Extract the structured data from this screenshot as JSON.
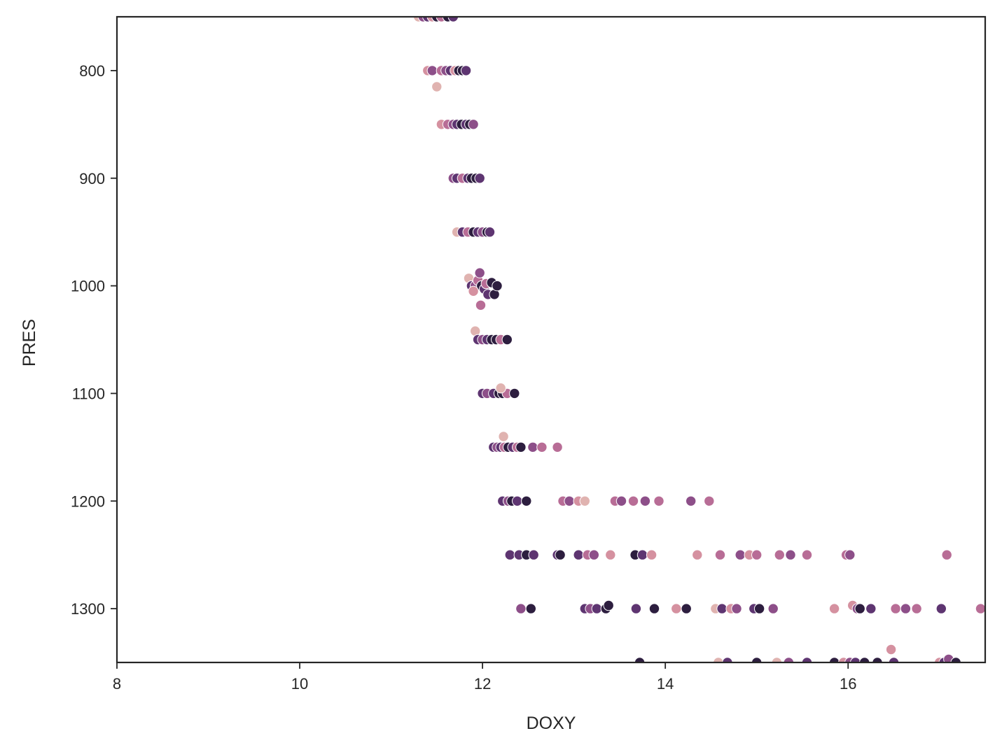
{
  "chart_data": {
    "type": "scatter",
    "title": "",
    "xlabel": "DOXY",
    "ylabel": "PRES",
    "xlim": [
      8,
      17.5
    ],
    "ylim": [
      1350,
      750
    ],
    "y_inverted": true,
    "grid": false,
    "legend": "none",
    "x_ticks": [
      8,
      10,
      12,
      14,
      16
    ],
    "y_ticks": [
      800,
      900,
      1000,
      1100,
      1200,
      1300
    ],
    "palette": [
      "#e0b3b0",
      "#d591a0",
      "#b86d96",
      "#8d4f89",
      "#5e3571",
      "#2d1e3f"
    ],
    "points": [
      [
        11.3,
        750,
        0
      ],
      [
        11.35,
        750,
        3
      ],
      [
        11.4,
        750,
        4
      ],
      [
        11.45,
        750,
        1
      ],
      [
        11.5,
        750,
        5
      ],
      [
        11.55,
        750,
        2
      ],
      [
        11.62,
        750,
        5
      ],
      [
        11.68,
        750,
        4
      ],
      [
        11.4,
        800,
        1
      ],
      [
        11.45,
        800,
        3
      ],
      [
        11.55,
        800,
        2
      ],
      [
        11.6,
        800,
        3
      ],
      [
        11.65,
        800,
        4
      ],
      [
        11.7,
        800,
        1
      ],
      [
        11.74,
        800,
        5
      ],
      [
        11.78,
        800,
        5
      ],
      [
        11.82,
        800,
        4
      ],
      [
        11.5,
        815,
        0
      ],
      [
        11.55,
        850,
        1
      ],
      [
        11.62,
        850,
        2
      ],
      [
        11.68,
        850,
        3
      ],
      [
        11.72,
        850,
        4
      ],
      [
        11.77,
        850,
        5
      ],
      [
        11.82,
        850,
        4
      ],
      [
        11.86,
        850,
        5
      ],
      [
        11.9,
        850,
        3
      ],
      [
        11.68,
        900,
        3
      ],
      [
        11.72,
        900,
        4
      ],
      [
        11.78,
        900,
        2
      ],
      [
        11.84,
        900,
        4
      ],
      [
        11.88,
        900,
        5
      ],
      [
        11.93,
        900,
        5
      ],
      [
        11.97,
        900,
        4
      ],
      [
        11.72,
        950,
        0
      ],
      [
        11.78,
        950,
        4
      ],
      [
        11.84,
        950,
        2
      ],
      [
        11.9,
        950,
        5
      ],
      [
        11.95,
        950,
        4
      ],
      [
        12.0,
        950,
        3
      ],
      [
        12.05,
        950,
        5
      ],
      [
        12.08,
        950,
        4
      ],
      [
        11.85,
        993,
        0
      ],
      [
        11.88,
        1000,
        4
      ],
      [
        11.92,
        1000,
        3
      ],
      [
        11.95,
        995,
        2
      ],
      [
        11.97,
        988,
        3
      ],
      [
        11.99,
        1000,
        5
      ],
      [
        12.02,
        1003,
        4
      ],
      [
        12.04,
        998,
        2
      ],
      [
        12.06,
        1008,
        4
      ],
      [
        12.1,
        997,
        5
      ],
      [
        12.13,
        1008,
        5
      ],
      [
        12.16,
        1000,
        5
      ],
      [
        11.98,
        1018,
        2
      ],
      [
        11.9,
        1005,
        1
      ],
      [
        11.92,
        1042,
        0
      ],
      [
        11.95,
        1050,
        4
      ],
      [
        12.0,
        1050,
        3
      ],
      [
        12.05,
        1050,
        4
      ],
      [
        12.1,
        1050,
        5
      ],
      [
        12.15,
        1050,
        5
      ],
      [
        12.2,
        1050,
        2
      ],
      [
        12.27,
        1050,
        5
      ],
      [
        12.0,
        1100,
        4
      ],
      [
        12.05,
        1100,
        3
      ],
      [
        12.12,
        1100,
        4
      ],
      [
        12.18,
        1100,
        5
      ],
      [
        12.22,
        1100,
        5
      ],
      [
        12.27,
        1100,
        2
      ],
      [
        12.35,
        1100,
        5
      ],
      [
        12.2,
        1095,
        0
      ],
      [
        12.12,
        1150,
        4
      ],
      [
        12.16,
        1150,
        3
      ],
      [
        12.2,
        1150,
        4
      ],
      [
        12.24,
        1150,
        2
      ],
      [
        12.28,
        1150,
        5
      ],
      [
        12.33,
        1150,
        4
      ],
      [
        12.38,
        1150,
        2
      ],
      [
        12.42,
        1150,
        5
      ],
      [
        12.55,
        1150,
        3
      ],
      [
        12.65,
        1150,
        2
      ],
      [
        12.82,
        1150,
        2
      ],
      [
        12.23,
        1140,
        0
      ],
      [
        12.22,
        1200,
        4
      ],
      [
        12.28,
        1200,
        3
      ],
      [
        12.32,
        1200,
        5
      ],
      [
        12.38,
        1200,
        4
      ],
      [
        12.48,
        1200,
        5
      ],
      [
        12.88,
        1200,
        2
      ],
      [
        12.95,
        1200,
        3
      ],
      [
        13.05,
        1200,
        1
      ],
      [
        13.12,
        1200,
        0
      ],
      [
        13.45,
        1200,
        2
      ],
      [
        13.52,
        1200,
        3
      ],
      [
        13.65,
        1200,
        2
      ],
      [
        13.78,
        1200,
        3
      ],
      [
        13.93,
        1200,
        2
      ],
      [
        14.28,
        1200,
        3
      ],
      [
        14.48,
        1200,
        2
      ],
      [
        12.3,
        1250,
        4
      ],
      [
        12.4,
        1250,
        4
      ],
      [
        12.48,
        1250,
        5
      ],
      [
        12.56,
        1250,
        4
      ],
      [
        12.82,
        1250,
        4
      ],
      [
        12.85,
        1250,
        5
      ],
      [
        13.05,
        1250,
        4
      ],
      [
        13.15,
        1250,
        2
      ],
      [
        13.22,
        1250,
        3
      ],
      [
        13.4,
        1250,
        1
      ],
      [
        13.67,
        1250,
        5
      ],
      [
        13.75,
        1250,
        4
      ],
      [
        13.85,
        1250,
        1
      ],
      [
        14.35,
        1250,
        1
      ],
      [
        14.6,
        1250,
        2
      ],
      [
        14.82,
        1250,
        3
      ],
      [
        14.92,
        1250,
        1
      ],
      [
        15.0,
        1250,
        2
      ],
      [
        15.25,
        1250,
        2
      ],
      [
        15.37,
        1250,
        3
      ],
      [
        15.55,
        1250,
        2
      ],
      [
        15.98,
        1250,
        2
      ],
      [
        16.02,
        1250,
        3
      ],
      [
        17.08,
        1250,
        2
      ],
      [
        12.42,
        1300,
        3
      ],
      [
        12.53,
        1300,
        5
      ],
      [
        13.12,
        1300,
        4
      ],
      [
        13.18,
        1300,
        3
      ],
      [
        13.25,
        1300,
        4
      ],
      [
        13.35,
        1300,
        5
      ],
      [
        13.38,
        1297,
        5
      ],
      [
        13.68,
        1300,
        4
      ],
      [
        13.88,
        1300,
        5
      ],
      [
        14.12,
        1300,
        1
      ],
      [
        14.23,
        1300,
        5
      ],
      [
        14.55,
        1300,
        0
      ],
      [
        14.62,
        1300,
        4
      ],
      [
        14.72,
        1300,
        1
      ],
      [
        14.78,
        1300,
        3
      ],
      [
        14.97,
        1300,
        4
      ],
      [
        15.03,
        1300,
        5
      ],
      [
        15.18,
        1300,
        3
      ],
      [
        15.85,
        1300,
        1
      ],
      [
        16.05,
        1297,
        1
      ],
      [
        16.1,
        1300,
        3
      ],
      [
        16.13,
        1300,
        5
      ],
      [
        16.25,
        1300,
        4
      ],
      [
        16.52,
        1300,
        2
      ],
      [
        16.63,
        1300,
        3
      ],
      [
        16.75,
        1300,
        2
      ],
      [
        17.02,
        1300,
        4
      ],
      [
        17.45,
        1300,
        2
      ],
      [
        16.47,
        1338,
        1
      ],
      [
        13.72,
        1350,
        5
      ],
      [
        14.58,
        1350,
        0
      ],
      [
        14.68,
        1350,
        4
      ],
      [
        15.0,
        1350,
        5
      ],
      [
        15.22,
        1350,
        0
      ],
      [
        15.35,
        1350,
        3
      ],
      [
        15.55,
        1350,
        4
      ],
      [
        15.85,
        1350,
        5
      ],
      [
        15.95,
        1350,
        1
      ],
      [
        16.02,
        1350,
        3
      ],
      [
        16.08,
        1350,
        4
      ],
      [
        16.18,
        1350,
        5
      ],
      [
        16.32,
        1350,
        5
      ],
      [
        16.5,
        1350,
        4
      ],
      [
        17.0,
        1350,
        1
      ],
      [
        17.05,
        1350,
        4
      ],
      [
        17.1,
        1347,
        3
      ],
      [
        17.18,
        1350,
        5
      ]
    ]
  }
}
